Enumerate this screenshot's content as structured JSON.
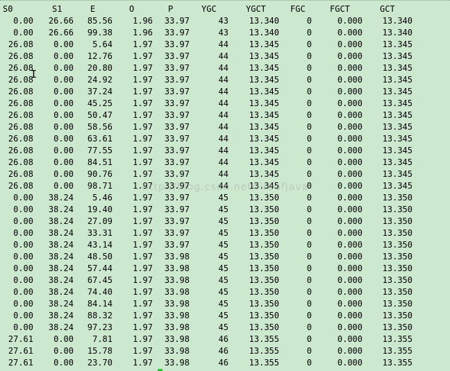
{
  "terminal": {
    "headers": [
      "S0",
      "S1",
      "E",
      "O",
      "P",
      "YGC",
      "YGCT",
      "FGC",
      "FGCT",
      "GCT"
    ],
    "rows": [
      [
        "0.00",
        "26.66",
        "85.56",
        "1.96",
        "33.97",
        "43",
        "13.340",
        "0",
        "0.000",
        "13.340"
      ],
      [
        "0.00",
        "26.66",
        "99.38",
        "1.96",
        "33.97",
        "43",
        "13.340",
        "0",
        "0.000",
        "13.340"
      ],
      [
        "26.08",
        "0.00",
        "5.64",
        "1.97",
        "33.97",
        "44",
        "13.345",
        "0",
        "0.000",
        "13.345"
      ],
      [
        "26.08",
        "0.00",
        "12.76",
        "1.97",
        "33.97",
        "44",
        "13.345",
        "0",
        "0.000",
        "13.345"
      ],
      [
        "26.08",
        "0.00",
        "20.80",
        "1.97",
        "33.97",
        "44",
        "13.345",
        "0",
        "0.000",
        "13.345"
      ],
      [
        "26.08",
        "0.00",
        "24.92",
        "1.97",
        "33.97",
        "44",
        "13.345",
        "0",
        "0.000",
        "13.345"
      ],
      [
        "26.08",
        "0.00",
        "37.24",
        "1.97",
        "33.97",
        "44",
        "13.345",
        "0",
        "0.000",
        "13.345"
      ],
      [
        "26.08",
        "0.00",
        "45.25",
        "1.97",
        "33.97",
        "44",
        "13.345",
        "0",
        "0.000",
        "13.345"
      ],
      [
        "26.08",
        "0.00",
        "50.47",
        "1.97",
        "33.97",
        "44",
        "13.345",
        "0",
        "0.000",
        "13.345"
      ],
      [
        "26.08",
        "0.00",
        "58.56",
        "1.97",
        "33.97",
        "44",
        "13.345",
        "0",
        "0.000",
        "13.345"
      ],
      [
        "26.08",
        "0.00",
        "63.61",
        "1.97",
        "33.97",
        "44",
        "13.345",
        "0",
        "0.000",
        "13.345"
      ],
      [
        "26.08",
        "0.00",
        "77.55",
        "1.97",
        "33.97",
        "44",
        "13.345",
        "0",
        "0.000",
        "13.345"
      ],
      [
        "26.08",
        "0.00",
        "84.51",
        "1.97",
        "33.97",
        "44",
        "13.345",
        "0",
        "0.000",
        "13.345"
      ],
      [
        "26.08",
        "0.00",
        "90.76",
        "1.97",
        "33.97",
        "44",
        "13.345",
        "0",
        "0.000",
        "13.345"
      ],
      [
        "26.08",
        "0.00",
        "98.71",
        "1.97",
        "33.97",
        "44",
        "13.345",
        "0",
        "0.000",
        "13.345"
      ],
      [
        "0.00",
        "38.24",
        "5.46",
        "1.97",
        "33.97",
        "45",
        "13.350",
        "0",
        "0.000",
        "13.350"
      ],
      [
        "0.00",
        "38.24",
        "19.40",
        "1.97",
        "33.97",
        "45",
        "13.350",
        "0",
        "0.000",
        "13.350"
      ],
      [
        "0.00",
        "38.24",
        "27.09",
        "1.97",
        "33.97",
        "45",
        "13.350",
        "0",
        "0.000",
        "13.350"
      ],
      [
        "0.00",
        "38.24",
        "33.31",
        "1.97",
        "33.97",
        "45",
        "13.350",
        "0",
        "0.000",
        "13.350"
      ],
      [
        "0.00",
        "38.24",
        "43.14",
        "1.97",
        "33.97",
        "45",
        "13.350",
        "0",
        "0.000",
        "13.350"
      ],
      [
        "0.00",
        "38.24",
        "48.50",
        "1.97",
        "33.98",
        "45",
        "13.350",
        "0",
        "0.000",
        "13.350"
      ],
      [
        "0.00",
        "38.24",
        "57.44",
        "1.97",
        "33.98",
        "45",
        "13.350",
        "0",
        "0.000",
        "13.350"
      ],
      [
        "0.00",
        "38.24",
        "67.45",
        "1.97",
        "33.98",
        "45",
        "13.350",
        "0",
        "0.000",
        "13.350"
      ],
      [
        "0.00",
        "38.24",
        "74.40",
        "1.97",
        "33.98",
        "45",
        "13.350",
        "0",
        "0.000",
        "13.350"
      ],
      [
        "0.00",
        "38.24",
        "84.14",
        "1.97",
        "33.98",
        "45",
        "13.350",
        "0",
        "0.000",
        "13.350"
      ],
      [
        "0.00",
        "38.24",
        "88.32",
        "1.97",
        "33.98",
        "45",
        "13.350",
        "0",
        "0.000",
        "13.350"
      ],
      [
        "0.00",
        "38.24",
        "97.23",
        "1.97",
        "33.98",
        "45",
        "13.350",
        "0",
        "0.000",
        "13.350"
      ],
      [
        "27.61",
        "0.00",
        "7.81",
        "1.97",
        "33.98",
        "46",
        "13.355",
        "0",
        "0.000",
        "13.355"
      ],
      [
        "27.61",
        "0.00",
        "15.78",
        "1.97",
        "33.98",
        "46",
        "13.355",
        "0",
        "0.000",
        "13.355"
      ],
      [
        "27.61",
        "0.00",
        "23.70",
        "1.97",
        "33.98",
        "46",
        "13.355",
        "0",
        "0.000",
        "13.355"
      ]
    ]
  },
  "watermark": "http://blog.csdn.net/fireofjava",
  "colors": {
    "background": "#cce8cf",
    "text": "#000000",
    "cursor_mark": "#22cc22"
  },
  "icons": {
    "text_cursor": "i-beam-icon"
  }
}
